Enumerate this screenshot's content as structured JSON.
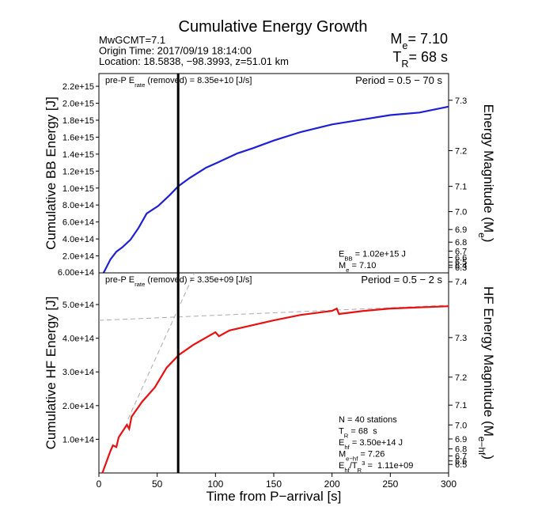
{
  "title": "Cumulative Energy Growth",
  "info": [
    "MwGCMT=7.1",
    "Origin Time: 2017/09/19 18:14:00",
    "Location: 18.5838, −98.3993, z=51.01 km"
  ],
  "header_right": [
    [
      {
        "t": "M"
      },
      {
        "sub": "e"
      },
      {
        "t": "= "
      },
      {
        "value": 7.1,
        "label": "7.10"
      }
    ],
    [
      {
        "t": "T"
      },
      {
        "sub": "R"
      },
      {
        "t": "= "
      },
      {
        "value": 68
      },
      {
        "t": " s"
      }
    ]
  ],
  "chart_data": [
    {
      "type": "line",
      "ylabel": "Cumulative BB Energy [J]",
      "y2label": [
        {
          "t": "Energy Magnitude (M"
        },
        {
          "sub": "e"
        },
        {
          "t": ")"
        }
      ],
      "pre_p": [
        {
          "t": "pre-P E"
        },
        {
          "sub": "rate"
        },
        {
          "t": " (removed) = "
        },
        {
          "value": 83500000000,
          "label": "8.35e+10"
        },
        {
          "t": " [J/s]"
        }
      ],
      "period": "Period = 0.5 − 70 s",
      "bottom_label": "6.00e+14",
      "xlim": [
        0,
        300
      ],
      "ylim": [
        0,
        2350000000000000.0
      ],
      "yticks": [
        {
          "value": 200000000000000.0,
          "label": "2.0e+14"
        },
        {
          "value": 400000000000000.0,
          "label": "4.0e+14"
        },
        {
          "value": 600000000000000.0,
          "label": "6.0e+14"
        },
        {
          "value": 800000000000000.0,
          "label": "8.0e+14"
        },
        {
          "value": 1000000000000000.0,
          "label": "1.0e+15"
        },
        {
          "value": 1200000000000000.0,
          "label": "1.2e+15"
        },
        {
          "value": 1400000000000000.0,
          "label": "1.4e+15"
        },
        {
          "value": 1600000000000000.0,
          "label": "1.6e+15"
        },
        {
          "value": 1800000000000000.0,
          "label": "1.8e+15"
        },
        {
          "value": 2000000000000000.0,
          "label": "2.0e+15"
        },
        {
          "value": 2200000000000000.0,
          "label": "2.2e+15"
        }
      ],
      "y2ticks": [
        7.3,
        7.2,
        7.1,
        {
          "value": 7,
          "label": "7.0"
        },
        6.9,
        6.8,
        6.7,
        6.6,
        6.5,
        6.4,
        6.3
      ],
      "series": [
        {
          "name": "BB",
          "color": "#1f1fd6",
          "x": [
            4,
            10,
            15,
            20,
            27,
            34,
            41,
            51,
            61,
            68,
            78,
            92,
            100,
            119,
            132,
            150,
            173,
            200,
            227,
            250,
            275,
            300
          ],
          "values": [
            0,
            160000000000000.0,
            250000000000000.0,
            300000000000000.0,
            390000000000000.0,
            530000000000000.0,
            700000000000000.0,
            790000000000000.0,
            920000000000000.0,
            1020000000000000.0,
            1120000000000000.0,
            1240000000000000.0,
            1290000000000000.0,
            1410000000000000.0,
            1470000000000000.0,
            1560000000000000.0,
            1660000000000000.0,
            1750000000000000.0,
            1810000000000000.0,
            1860000000000000.0,
            1890000000000000.0,
            1960000000000000.0
          ]
        }
      ],
      "annotation": [
        [
          {
            "t": "E"
          },
          {
            "sub": "BB"
          },
          {
            "t": " = "
          },
          {
            "value": 1020000000000000.0,
            "label": "1.02e+15"
          },
          {
            "t": " J"
          }
        ],
        [
          {
            "t": "M"
          },
          {
            "sub": "e"
          },
          {
            "t": " = "
          },
          {
            "value": 7.1,
            "label": "7.10"
          }
        ]
      ]
    },
    {
      "type": "line",
      "ylabel": "Cumulative HF Energy [J]",
      "y2label": [
        {
          "t": "HF Energy Magnitude (M"
        },
        {
          "sub": "e−hf"
        },
        {
          "t": ")"
        }
      ],
      "pre_p": [
        {
          "t": "pre-P E"
        },
        {
          "sub": "rate"
        },
        {
          "t": " (removed) = "
        },
        {
          "value": 3350000000,
          "label": "3.35e+09"
        },
        {
          "t": " [J/s]"
        }
      ],
      "period": "Period = 0.5 − 2 s",
      "xlabel": "Time from P−arrival [s]",
      "xlim": [
        0,
        300
      ],
      "xticks": [
        0,
        50,
        100,
        150,
        200,
        250,
        300
      ],
      "ylim": [
        0,
        594000000000000.0
      ],
      "yticks": [
        {
          "value": 100000000000000.0,
          "label": "1.0e+14"
        },
        {
          "value": 200000000000000.0,
          "label": "2.0e+14"
        },
        {
          "value": 300000000000000.0,
          "label": "3.0e+14"
        },
        {
          "value": 400000000000000.0,
          "label": "4.0e+14"
        },
        {
          "value": 500000000000000.0,
          "label": "5.0e+14"
        }
      ],
      "y2ticks": [
        7.4,
        7.3,
        7.2,
        7.1,
        {
          "value": 7,
          "label": "7.0"
        },
        6.9,
        6.8,
        6.7,
        6.6,
        6.5
      ],
      "series": [
        {
          "name": "HF",
          "color": "#e81010",
          "x": [
            3,
            10,
            12,
            15,
            17,
            24,
            26,
            28,
            37,
            48,
            58,
            68.5,
            81,
            100,
            103,
            112,
            150,
            173,
            200,
            204,
            206,
            227,
            250,
            300
          ],
          "values": [
            0,
            66000000000000.0,
            82000000000000.0,
            77000000000000.0,
            106000000000000.0,
            143000000000000.0,
            131000000000000.0,
            167000000000000.0,
            211000000000000.0,
            254000000000000.0,
            312000000000000.0,
            350000000000000.0,
            380000000000000.0,
            418000000000000.0,
            406000000000000.0,
            423000000000000.0,
            453000000000000.0,
            469000000000000.0,
            481000000000000.0,
            488000000000000.0,
            472000000000000.0,
            481000000000000.0,
            488000000000000.0,
            495000000000000.0
          ]
        }
      ],
      "reference_lines": [
        {
          "x": [
            0,
            300
          ],
          "values": [
            453000000000000.0,
            498000000000000.0
          ]
        },
        {
          "x": [
            25,
            82
          ],
          "values": [
            160000000000000.0,
            594000000000000.0
          ]
        }
      ],
      "annotation": [
        [
          {
            "t": "N = "
          },
          {
            "value": 40
          },
          {
            "t": " stations"
          }
        ],
        [
          {
            "t": "T"
          },
          {
            "sub": "R"
          },
          {
            "t": " = "
          },
          {
            "value": 68
          },
          {
            "t": "  s"
          }
        ],
        [
          {
            "t": "E"
          },
          {
            "sub": "hf"
          },
          {
            "t": " = "
          },
          {
            "value": 350000000000000.0,
            "label": "3.50e+14"
          },
          {
            "t": " J"
          }
        ],
        [
          {
            "t": "M"
          },
          {
            "sub": "e−hf"
          },
          {
            "t": " = "
          },
          {
            "value": 7.26
          }
        ],
        [
          {
            "t": "E"
          },
          {
            "sub": "hf"
          },
          {
            "t": "/T"
          },
          {
            "sub": "R"
          },
          {
            "sup": "3"
          },
          {
            "t": " =  "
          },
          {
            "value": 1110000000,
            "label": "1.11e+09"
          }
        ]
      ]
    }
  ]
}
